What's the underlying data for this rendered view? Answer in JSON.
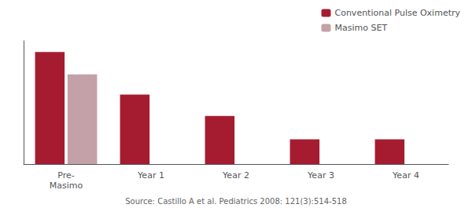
{
  "chart_data": {
    "type": "bar",
    "categories": [
      "Pre-\nMasimo",
      "Year 1",
      "Year 2",
      "Year 3",
      "Year 4"
    ],
    "series": [
      {
        "name": "Conventional Pulse Oximetry",
        "color": "#a51c30",
        "values": [
          100,
          62,
          43,
          22,
          22
        ]
      },
      {
        "name": "Masimo SET",
        "color": "#c4a0a8",
        "values": [
          80,
          0,
          0,
          0,
          0
        ]
      }
    ],
    "ylim": [
      0,
      110
    ],
    "tick_labels": "x",
    "grid": false,
    "legend": "upper right",
    "annotations": [
      "Source: Castillo A et al. Pediatrics 2008: 121(3):514-518"
    ]
  }
}
